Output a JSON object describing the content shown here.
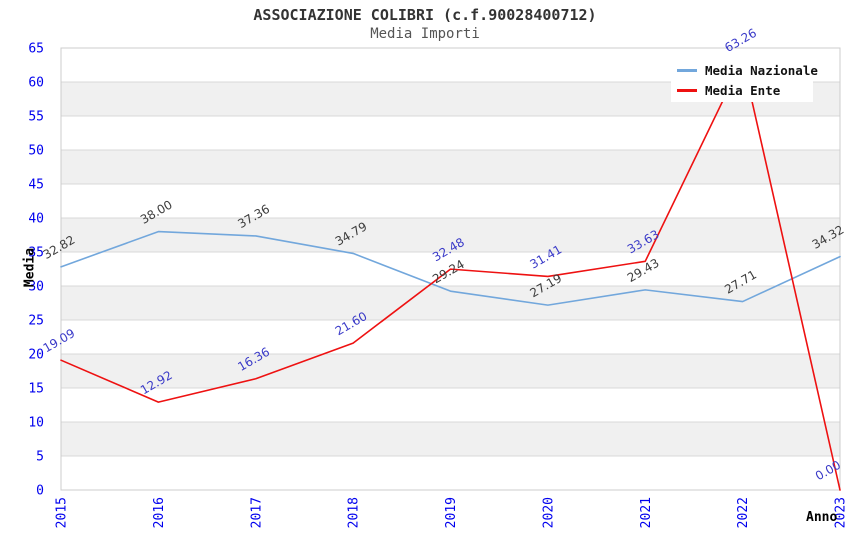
{
  "chart_data": {
    "type": "line",
    "title": "ASSOCIAZIONE COLIBRI (c.f.90028400712)",
    "subtitle": "Media Importi",
    "xlabel": "Anno",
    "ylabel": "Media",
    "categories": [
      "2015",
      "2016",
      "2017",
      "2018",
      "2019",
      "2020",
      "2021",
      "2022",
      "2023"
    ],
    "series": [
      {
        "name": "Media Nazionale",
        "color": "#72a7dc",
        "label_color": "#3c3c3c",
        "values": [
          32.82,
          38.0,
          37.36,
          34.79,
          29.24,
          27.19,
          29.43,
          27.71,
          34.32
        ]
      },
      {
        "name": "Media Ente",
        "color": "#ee1111",
        "label_color": "#3a3ac8",
        "values": [
          19.09,
          12.92,
          16.36,
          21.6,
          32.48,
          31.41,
          33.63,
          63.26,
          0.0
        ]
      }
    ],
    "ylim": [
      0,
      65
    ],
    "ytick_step": 5,
    "grid": "horizontal-bands",
    "band_color": "#f0f0f0",
    "gridline_color": "#d9d9d9",
    "border_color": "#cccccc",
    "tick_label_color": "#0000ee",
    "legend_position": "top-right"
  }
}
